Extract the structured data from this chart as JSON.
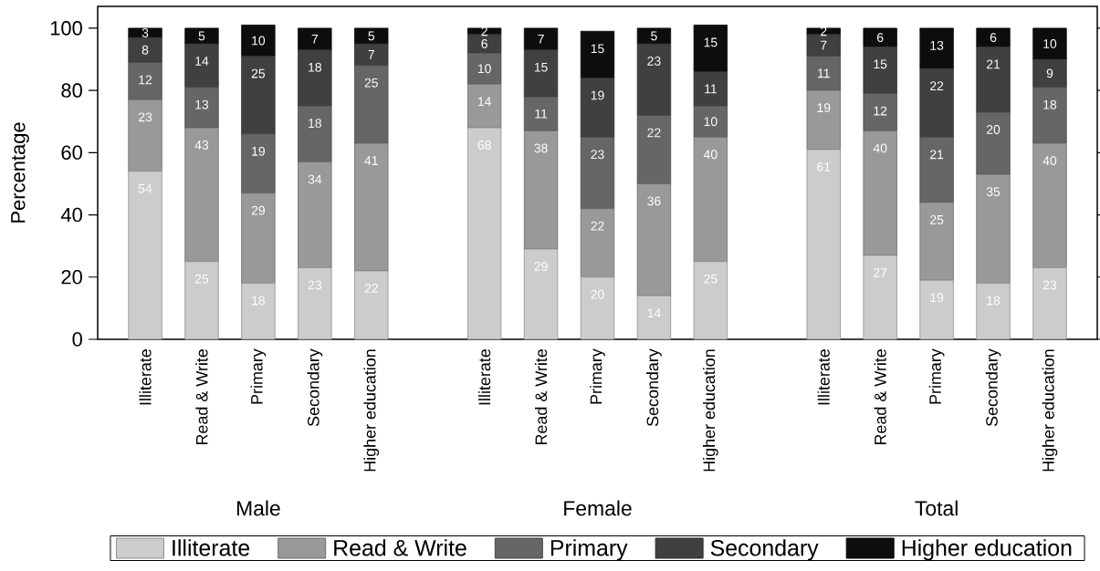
{
  "chart_data": {
    "type": "bar",
    "stacked": true,
    "ylabel": "Percentage",
    "categories": [
      "Illiterate",
      "Read & Write",
      "Primary",
      "Secondary",
      "Higher education",
      null,
      "Illiterate",
      "Read & Write",
      "Primary",
      "Secondary",
      "Higher education",
      null,
      "Illiterate",
      "Read & Write",
      "Primary",
      "Secondary",
      "Higher education"
    ],
    "series": [
      {
        "name": "Illiterate",
        "color": "#cccccc",
        "values": [
          54,
          25,
          18,
          23,
          22,
          null,
          68,
          29,
          20,
          14,
          25,
          null,
          61,
          27,
          19,
          18,
          23
        ]
      },
      {
        "name": "Read & Write",
        "color": "#999999",
        "values": [
          23,
          43,
          29,
          34,
          41,
          null,
          14,
          38,
          22,
          36,
          40,
          null,
          19,
          40,
          25,
          35,
          40
        ]
      },
      {
        "name": "Primary",
        "color": "#666666",
        "values": [
          12,
          13,
          19,
          18,
          25,
          null,
          10,
          11,
          23,
          22,
          10,
          null,
          11,
          12,
          21,
          20,
          18
        ]
      },
      {
        "name": "Secondary",
        "color": "#404040",
        "values": [
          8,
          14,
          25,
          18,
          7,
          null,
          6,
          15,
          19,
          23,
          11,
          null,
          7,
          15,
          22,
          21,
          9
        ]
      },
      {
        "name": "Higher education",
        "color": "#0d0d0d",
        "values": [
          3,
          5,
          10,
          7,
          5,
          null,
          2,
          7,
          15,
          5,
          15,
          null,
          2,
          6,
          13,
          6,
          10
        ]
      }
    ],
    "ylim": [
      0,
      107
    ],
    "yticks": [
      0,
      20,
      40,
      60,
      80,
      100
    ],
    "legend": "bottom",
    "data_labels": true,
    "annotations": [
      "Male",
      "Female",
      "Total"
    ]
  }
}
